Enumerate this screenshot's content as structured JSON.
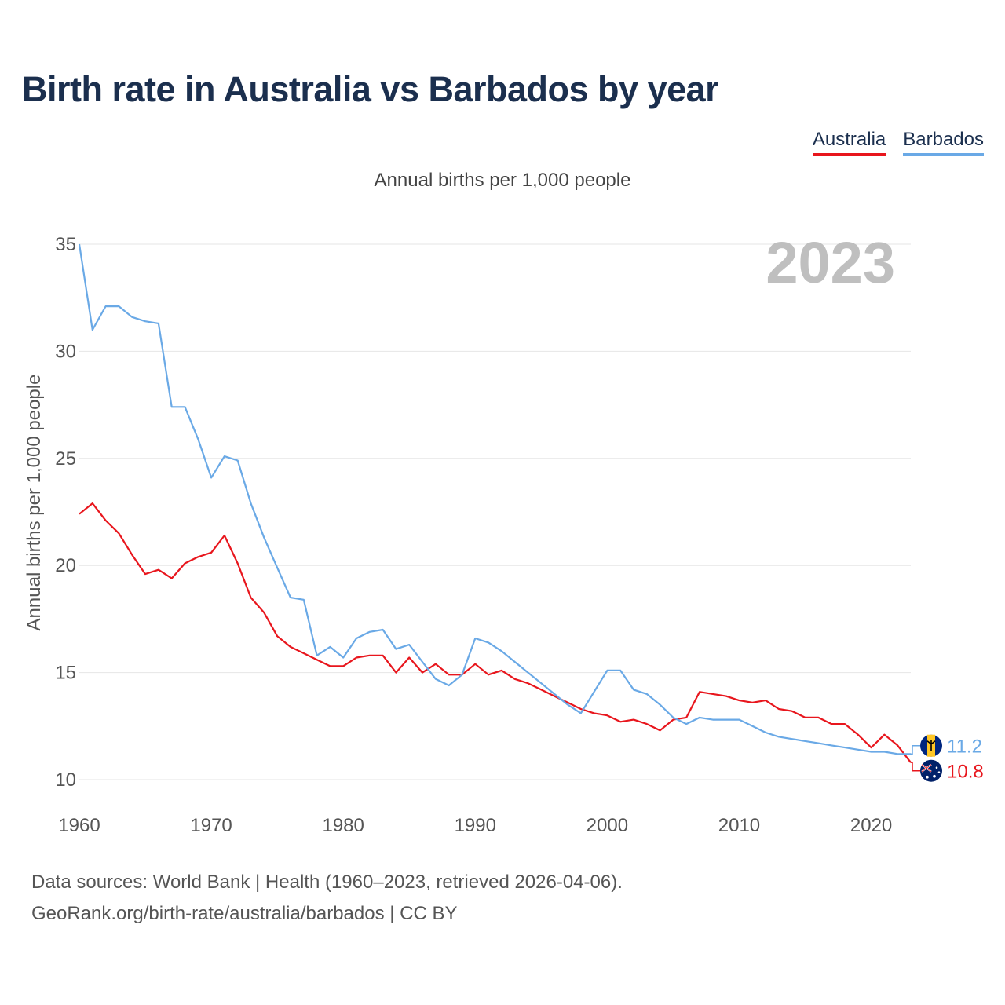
{
  "title": "Birth rate in Australia vs Barbados by year",
  "subtitle": "Annual births per 1,000 people",
  "legend": [
    {
      "name": "Australia",
      "color": "#e8161d"
    },
    {
      "name": "Barbados",
      "color": "#6aa9e6"
    }
  ],
  "footer": {
    "line1": "Data sources: World Bank | Health (1960–2023, retrieved 2026-04-06).",
    "line2": "GeoRank.org/birth-rate/australia/barbados | CC BY"
  },
  "chart_data": {
    "type": "line",
    "title": "Birth rate in Australia vs Barbados by year",
    "ylabel": "Annual births per 1,000 people",
    "xlabel": "",
    "year_label": "2023",
    "xlim": [
      1960,
      2023
    ],
    "ylim": [
      10,
      35
    ],
    "x_ticks": [
      1960,
      1970,
      1980,
      1990,
      2000,
      2010,
      2020
    ],
    "y_ticks": [
      10,
      15,
      20,
      25,
      30,
      35
    ],
    "grid": true,
    "x": [
      1960,
      1961,
      1962,
      1963,
      1964,
      1965,
      1966,
      1967,
      1968,
      1969,
      1970,
      1971,
      1972,
      1973,
      1974,
      1975,
      1976,
      1977,
      1978,
      1979,
      1980,
      1981,
      1982,
      1983,
      1984,
      1985,
      1986,
      1987,
      1988,
      1989,
      1990,
      1991,
      1992,
      1993,
      1994,
      1995,
      1996,
      1997,
      1998,
      1999,
      2000,
      2001,
      2002,
      2003,
      2004,
      2005,
      2006,
      2007,
      2008,
      2009,
      2010,
      2011,
      2012,
      2013,
      2014,
      2015,
      2016,
      2017,
      2018,
      2019,
      2020,
      2021,
      2022,
      2023
    ],
    "series": [
      {
        "name": "Australia",
        "color": "#e8161d",
        "end_label": "10.8",
        "values": [
          22.4,
          22.9,
          22.1,
          21.5,
          20.5,
          19.6,
          19.8,
          19.4,
          20.1,
          20.4,
          20.6,
          21.4,
          20.1,
          18.5,
          17.8,
          16.7,
          16.2,
          15.9,
          15.6,
          15.3,
          15.3,
          15.7,
          15.8,
          15.8,
          15.0,
          15.7,
          15.0,
          15.4,
          14.9,
          14.9,
          15.4,
          14.9,
          15.1,
          14.7,
          14.5,
          14.2,
          13.9,
          13.6,
          13.3,
          13.1,
          13.0,
          12.7,
          12.8,
          12.6,
          12.3,
          12.8,
          12.9,
          14.1,
          14.0,
          13.9,
          13.7,
          13.6,
          13.7,
          13.3,
          13.2,
          12.9,
          12.9,
          12.6,
          12.6,
          12.1,
          11.5,
          12.1,
          11.6,
          10.8
        ]
      },
      {
        "name": "Barbados",
        "color": "#6aa9e6",
        "end_label": "11.2",
        "values": [
          35.0,
          31.0,
          32.1,
          32.1,
          31.6,
          31.4,
          31.3,
          27.4,
          27.4,
          25.9,
          24.1,
          25.1,
          24.9,
          22.9,
          21.3,
          19.9,
          18.5,
          18.4,
          15.8,
          16.2,
          15.7,
          16.6,
          16.9,
          17.0,
          16.1,
          16.3,
          15.5,
          14.7,
          14.4,
          14.9,
          16.6,
          16.4,
          16.0,
          15.5,
          15.0,
          14.5,
          14.0,
          13.5,
          13.1,
          14.1,
          15.1,
          15.1,
          14.2,
          14.0,
          13.5,
          12.9,
          12.6,
          12.9,
          12.8,
          12.8,
          12.8,
          12.5,
          12.2,
          12.0,
          11.9,
          11.8,
          11.7,
          11.6,
          11.5,
          11.4,
          11.3,
          11.3,
          11.2,
          11.2
        ]
      }
    ]
  }
}
